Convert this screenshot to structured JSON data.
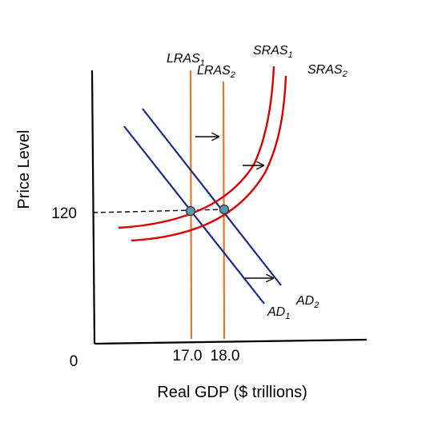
{
  "chart_data": {
    "type": "line",
    "title": "",
    "xlabel": "Real GDP ($ trillions)",
    "ylabel": "Price Level",
    "origin_label": "0",
    "x_ticks": [
      "17.0",
      "18.0"
    ],
    "y_ticks": [
      "120"
    ],
    "equilibrium": [
      {
        "x": 17.0,
        "y": 120
      },
      {
        "x": 18.0,
        "y": 120
      }
    ],
    "series": [
      {
        "name": "LRAS",
        "sub": "1",
        "kind": "vertical",
        "x": 17.0,
        "color": "#e87722"
      },
      {
        "name": "LRAS",
        "sub": "2",
        "kind": "vertical",
        "x": 18.0,
        "color": "#e87722"
      },
      {
        "name": "SRAS",
        "sub": "1",
        "kind": "curve",
        "color": "#dd0000"
      },
      {
        "name": "SRAS",
        "sub": "2",
        "kind": "curve",
        "color": "#dd0000"
      },
      {
        "name": "AD",
        "sub": "1",
        "kind": "line",
        "color": "#1a2a8a"
      },
      {
        "name": "AD",
        "sub": "2",
        "kind": "line",
        "color": "#1a2a8a"
      }
    ],
    "shift_arrows": 3,
    "colors": {
      "lras": "#e87722",
      "sras": "#dd0000",
      "ad": "#1a2a8a",
      "point": "#5a9aa8"
    }
  }
}
